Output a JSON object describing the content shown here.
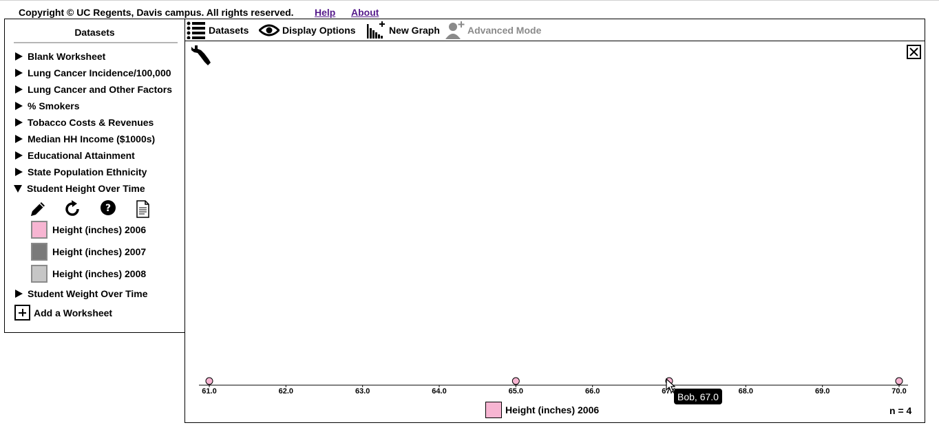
{
  "header": {
    "copyright": "Copyright © UC Regents, Davis campus. All rights reserved.",
    "help": "Help",
    "about": "About"
  },
  "sidebar": {
    "title": "Datasets",
    "items": [
      {
        "label": "Blank Worksheet",
        "expanded": false
      },
      {
        "label": "Lung Cancer Incidence/100,000",
        "expanded": false
      },
      {
        "label": "Lung Cancer and Other Factors",
        "expanded": false
      },
      {
        "label": "% Smokers",
        "expanded": false
      },
      {
        "label": "Tobacco Costs & Revenues",
        "expanded": false
      },
      {
        "label": "Median HH Income ($1000s)",
        "expanded": false
      },
      {
        "label": "Educational Attainment",
        "expanded": false
      },
      {
        "label": "State Population Ethnicity",
        "expanded": false
      },
      {
        "label": "Student Height Over Time",
        "expanded": true
      },
      {
        "label": "Student Weight Over Time",
        "expanded": false
      }
    ],
    "tools": [
      "pencil-icon",
      "refresh-icon",
      "help-circle-icon",
      "document-icon"
    ],
    "attributes": [
      {
        "label": "Height (inches) 2006",
        "color": "#f7b5d2"
      },
      {
        "label": "Height (inches) 2007",
        "color": "#7a7a7a"
      },
      {
        "label": "Height (inches) 2008",
        "color": "#c6c6c6"
      }
    ],
    "add_worksheet": "Add a Worksheet"
  },
  "toolbar": {
    "datasets": "Datasets",
    "display_options": "Display Options",
    "new_graph": "New Graph",
    "advanced_mode": "Advanced Mode"
  },
  "chart_data": {
    "type": "scatter",
    "axis": "x",
    "xlim": [
      61.0,
      70.0
    ],
    "ticks": [
      "61.0",
      "62.0",
      "63.0",
      "64.0",
      "65.0",
      "66.0",
      "67.0",
      "68.0",
      "69.0",
      "70.0"
    ],
    "series": [
      {
        "name": "Height (inches) 2006",
        "color": "#f7b5d2",
        "x": [
          61.0,
          65.0,
          67.0,
          70.0
        ]
      }
    ],
    "legend": "Height (inches) 2006",
    "n_label": "n = 4",
    "tooltip": "Bob, 67.0"
  }
}
